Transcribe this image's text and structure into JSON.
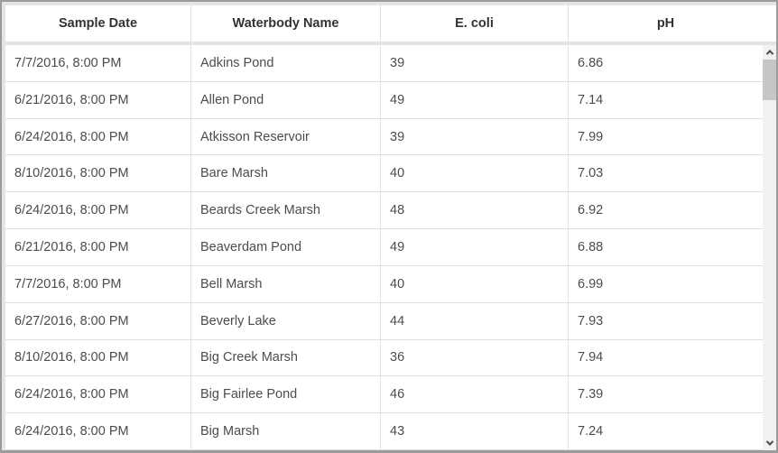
{
  "table": {
    "columns": [
      "Sample Date",
      "Waterbody Name",
      "E. coli",
      "pH"
    ],
    "rows": [
      [
        "7/7/2016, 8:00 PM",
        "Adkins Pond",
        "39",
        "6.86"
      ],
      [
        "6/21/2016, 8:00 PM",
        "Allen Pond",
        "49",
        "7.14"
      ],
      [
        "6/24/2016, 8:00 PM",
        "Atkisson Reservoir",
        "39",
        "7.99"
      ],
      [
        "8/10/2016, 8:00 PM",
        "Bare Marsh",
        "40",
        "7.03"
      ],
      [
        "6/24/2016, 8:00 PM",
        "Beards Creek Marsh",
        "48",
        "6.92"
      ],
      [
        "6/21/2016, 8:00 PM",
        "Beaverdam Pond",
        "49",
        "6.88"
      ],
      [
        "7/7/2016, 8:00 PM",
        "Bell Marsh",
        "40",
        "6.99"
      ],
      [
        "6/27/2016, 8:00 PM",
        "Beverly Lake",
        "44",
        "7.93"
      ],
      [
        "8/10/2016, 8:00 PM",
        "Big Creek Marsh",
        "36",
        "7.94"
      ],
      [
        "6/24/2016, 8:00 PM",
        "Big Fairlee Pond",
        "46",
        "7.39"
      ],
      [
        "6/24/2016, 8:00 PM",
        "Big Marsh",
        "43",
        "7.24"
      ]
    ]
  },
  "scrollbar": {
    "up_icon": "chevron-up",
    "down_icon": "chevron-down"
  },
  "colors": {
    "outer_border": "#9b9b9b",
    "header_text": "#323232",
    "body_text": "#4c4c4c",
    "divider": "#e0e0e0",
    "widget_background": "#e4e4e4",
    "scroll_track": "#f1f1f1",
    "scroll_thumb": "#c6c6c6",
    "scroll_arrow": "#4d4d4d"
  }
}
